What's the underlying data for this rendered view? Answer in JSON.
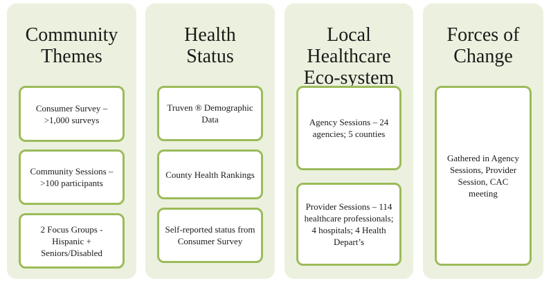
{
  "columns": [
    {
      "title_lines": [
        "Community",
        "Themes"
      ],
      "items": [
        "Consumer Survey – >1,000 surveys",
        "Community Sessions –  >100 participants",
        "2 Focus Groups - Hispanic + Seniors/Disabled"
      ]
    },
    {
      "title_lines": [
        "Health",
        "Status"
      ],
      "items": [
        "Truven ® Demographic Data",
        "County Health Rankings",
        "Self-reported status from Consumer Survey"
      ]
    },
    {
      "title_lines": [
        "Local",
        "Healthcare",
        "Eco-system"
      ],
      "items": [
        "Agency Sessions – 24 agencies; 5 counties",
        "Provider Sessions – 114 healthcare professionals; 4 hospitals; 4 Health Depart’s"
      ]
    },
    {
      "title_lines": [
        "Forces of",
        "Change"
      ],
      "items": [
        "Gathered in Agency Sessions, Provider Session, CAC meeting"
      ]
    }
  ]
}
